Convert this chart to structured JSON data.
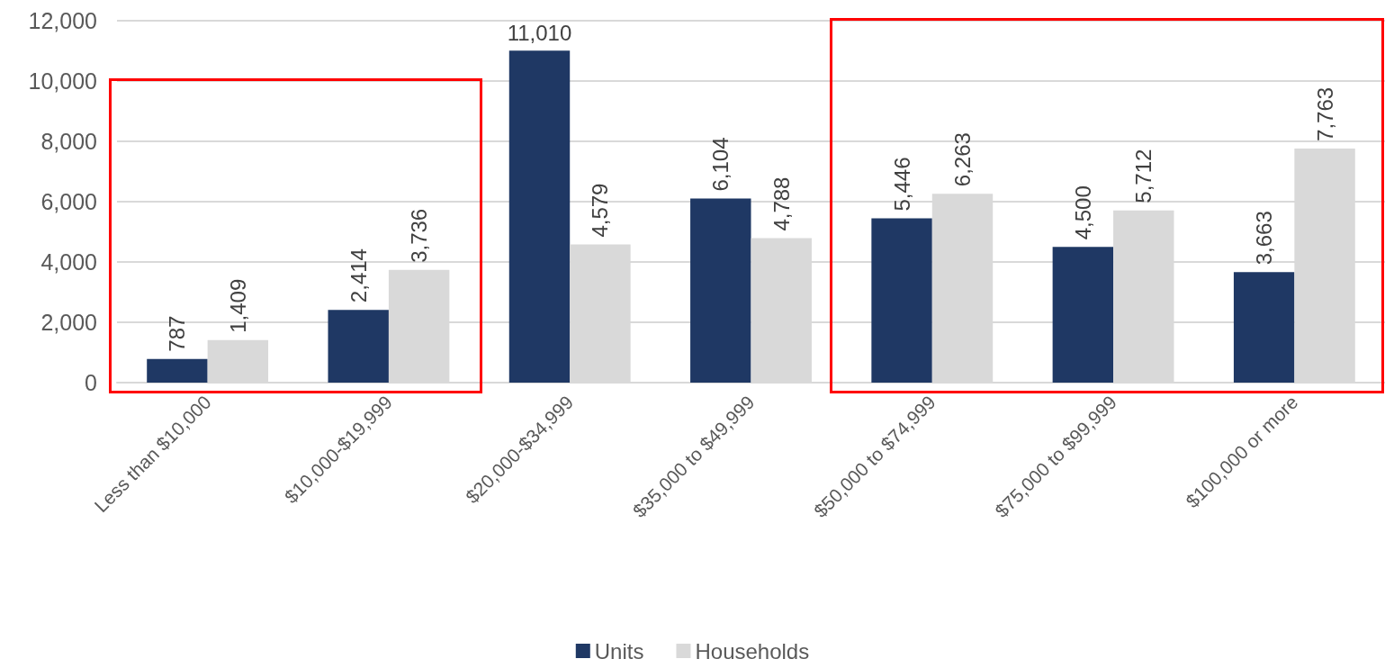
{
  "chart_data": {
    "type": "bar",
    "categories": [
      "Less than $10,000",
      "$10,000-$19,999",
      "$20,000-$34,999",
      "$35,000 to $49,999",
      "$50,000 to $74,999",
      "$75,000 to $99,999",
      "$100,000 or more"
    ],
    "series": [
      {
        "name": "Units",
        "color": "#1f3864",
        "values": [
          787,
          2414,
          11010,
          6104,
          5446,
          4500,
          3663
        ],
        "value_labels": [
          "787",
          "2,414",
          "11,010",
          "6,104",
          "5,446",
          "4,500",
          "3,663"
        ]
      },
      {
        "name": "Households",
        "color": "#d9d9d9",
        "values": [
          1409,
          3736,
          4579,
          4788,
          6263,
          5712,
          7763
        ],
        "value_labels": [
          "1,409",
          "3,736",
          "4,579",
          "4,788",
          "6,263",
          "5,712",
          "7,763"
        ]
      }
    ],
    "ylim": [
      0,
      12000
    ],
    "yticks": [
      {
        "value": 0,
        "label": "0"
      },
      {
        "value": 2000,
        "label": "2,000"
      },
      {
        "value": 4000,
        "label": "4,000"
      },
      {
        "value": 6000,
        "label": "6,000"
      },
      {
        "value": 8000,
        "label": "8,000"
      },
      {
        "value": 10000,
        "label": "10,000"
      },
      {
        "value": 12000,
        "label": "12,000"
      }
    ],
    "grid": "y",
    "legend": "bottom"
  }
}
